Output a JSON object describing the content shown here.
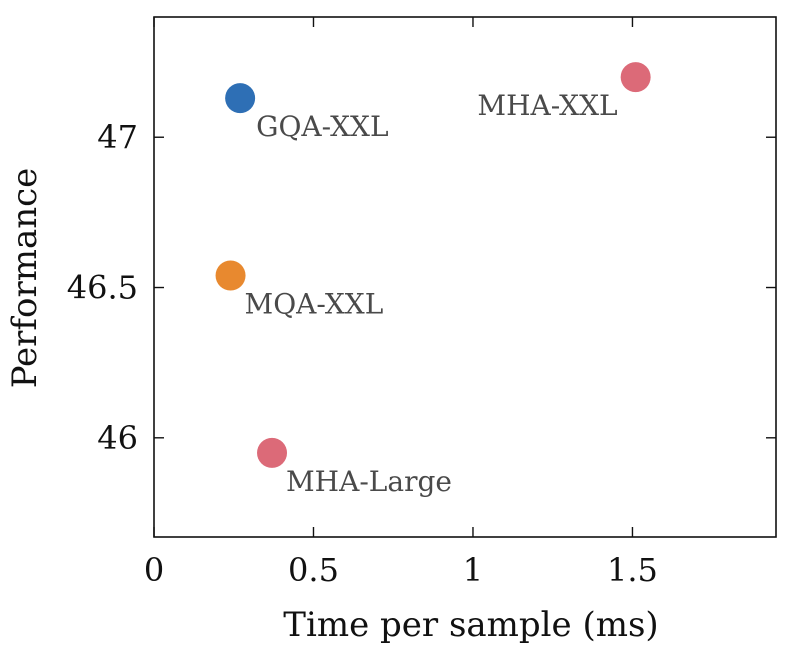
{
  "chart_data": {
    "type": "scatter",
    "title": "",
    "xlabel": "Time per sample (ms)",
    "ylabel": "Performance",
    "xlim": [
      0,
      1.95
    ],
    "ylim": [
      45.67,
      47.4
    ],
    "xticks": [
      0,
      0.5,
      1,
      1.5
    ],
    "xtick_labels": [
      "0",
      "0.5",
      "1",
      "1.5"
    ],
    "yticks": [
      46,
      46.5,
      47
    ],
    "ytick_labels": [
      "46",
      "46.5",
      "47"
    ],
    "grid": false,
    "legend": false,
    "points": [
      {
        "label": "GQA-XXL",
        "x": 0.27,
        "y": 47.13,
        "color": "#2e6fb5"
      },
      {
        "label": "MHA-XXL",
        "x": 1.51,
        "y": 47.2,
        "color": "#dc6a78"
      },
      {
        "label": "MQA-XXL",
        "x": 0.24,
        "y": 46.54,
        "color": "#e8892f"
      },
      {
        "label": "MHA-Large",
        "x": 0.37,
        "y": 45.95,
        "color": "#dc6a78"
      }
    ]
  }
}
